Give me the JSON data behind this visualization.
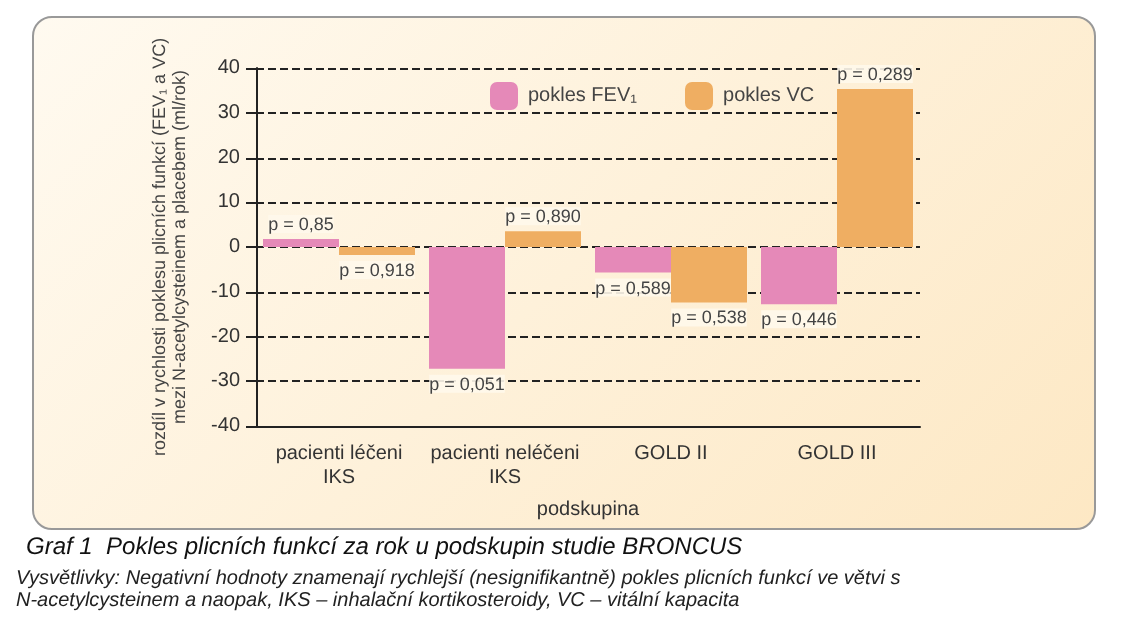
{
  "chart_data": {
    "type": "bar",
    "title": "Graf 1  Pokles plicních funkcí za rok u podskupin studie BRONCUS",
    "annotations": [
      "Vysvětlivky: Negativní hodnoty znamenají rychlejší (nesignifikantně) pokles plicních funkcí ve větvi s N-acetylcysteinem a naopak, IKS – inhalační kortikosteroidy, VC – vitální kapacita",
      {
        "text": "p = 0,85",
        "x": "pacienti léčeni\nIKS",
        "y": 1.8
      },
      {
        "text": "p = 0,918",
        "x": "pacienti léčeni\nIKS",
        "y": -1.8
      },
      {
        "text": "p = 0,051",
        "x": "pacienti neléčeni\nIKS",
        "y": -27.2
      },
      {
        "text": "p = 0,890",
        "x": "pacienti neléčeni\nIKS",
        "y": 3.5
      },
      {
        "text": "p = 0,589",
        "x": "GOLD II",
        "y": -5.7
      },
      {
        "text": "p = 0,538",
        "x": "GOLD II",
        "y": -12.4
      },
      {
        "text": "p = 0,446",
        "x": "GOLD III",
        "y": -12.8
      },
      {
        "text": "p = 0,289",
        "x": "GOLD III",
        "y": 35.3
      }
    ],
    "xlabel": "podskupina",
    "ylabel": "rozdíl v rychlosti poklesu plicních funkcí (FEV₁ a VC)\nmezi N-acetylcysteinem a placebem (ml/rok)",
    "categories": [
      "pacienti léčeni\nIKS",
      "pacienti neléčeni\nIKS",
      "GOLD II",
      "GOLD III"
    ],
    "series": [
      {
        "name": "pokles FEV₁",
        "color": "#e589b8",
        "values": [
          1.8,
          -27.2,
          -5.7,
          -12.8
        ]
      },
      {
        "name": "pokles VC",
        "color": "#efae62",
        "values": [
          -1.8,
          3.5,
          -12.4,
          35.3
        ]
      }
    ],
    "ylim": [
      -40,
      40
    ],
    "yticks": [
      -40,
      -30,
      -20,
      -10,
      0,
      10,
      20,
      30,
      40
    ],
    "grid": "y",
    "legend": "top"
  }
}
